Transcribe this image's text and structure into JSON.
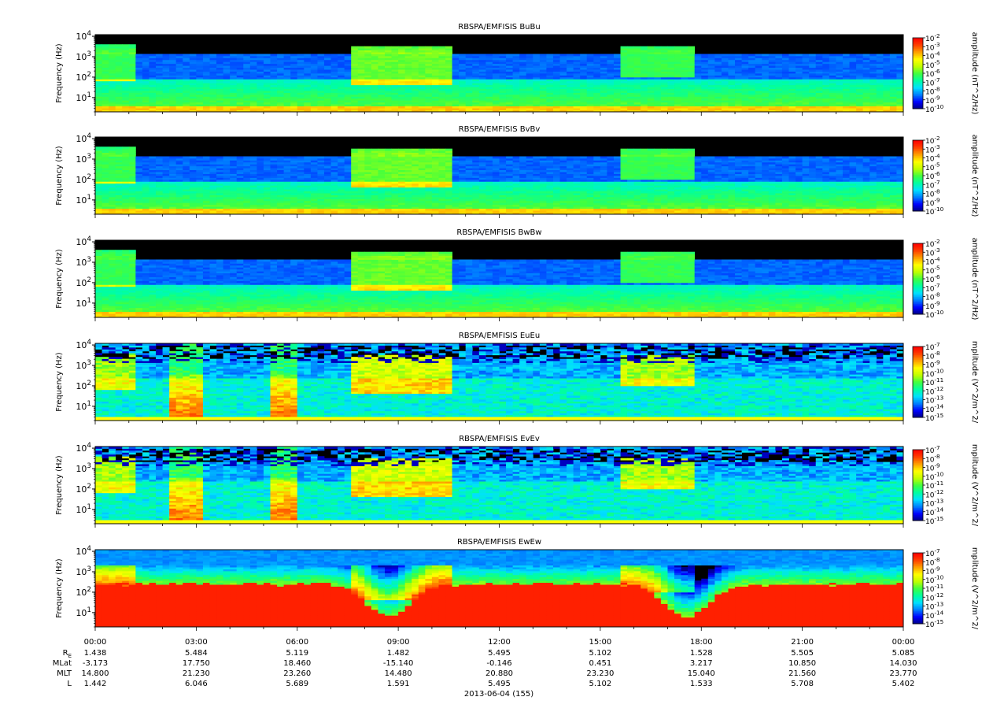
{
  "chart_data": {
    "type": "heatmap",
    "panels": [
      {
        "title": "RBSPA/EMFISIS  BuBu",
        "ylabel": "Frequency (Hz)",
        "yscale": "log",
        "ylim": [
          2,
          12000
        ],
        "yticks": [
          "10^1",
          "10^2",
          "10^3",
          "10^4"
        ],
        "colorbar": {
          "label": "amplitude (nT^2/Hz)",
          "scale": "log",
          "range_exp": [
            -10,
            -2
          ],
          "tick_exponents": [
            -10,
            -9,
            -8,
            -7,
            -6,
            -5,
            -4,
            -3,
            -2
          ]
        }
      },
      {
        "title": "RBSPA/EMFISIS  BvBv",
        "ylabel": "Frequency (Hz)",
        "yscale": "log",
        "ylim": [
          2,
          12000
        ],
        "yticks": [
          "10^1",
          "10^2",
          "10^3",
          "10^4"
        ],
        "colorbar": {
          "label": "amplitude (nT^2/Hz)",
          "scale": "log",
          "range_exp": [
            -10,
            -2
          ],
          "tick_exponents": [
            -10,
            -9,
            -8,
            -7,
            -6,
            -5,
            -4,
            -3,
            -2
          ]
        }
      },
      {
        "title": "RBSPA/EMFISIS  BwBw",
        "ylabel": "Frequency (Hz)",
        "yscale": "log",
        "ylim": [
          2,
          12000
        ],
        "yticks": [
          "10^1",
          "10^2",
          "10^3",
          "10^4"
        ],
        "colorbar": {
          "label": "amplitude (nT^2/Hz)",
          "scale": "log",
          "range_exp": [
            -10,
            -2
          ],
          "tick_exponents": [
            -10,
            -9,
            -8,
            -7,
            -6,
            -5,
            -4,
            -3,
            -2
          ]
        }
      },
      {
        "title": "RBSPA/EMFISIS  EuEu",
        "ylabel": "Frequency (Hz)",
        "yscale": "log",
        "ylim": [
          2,
          12000
        ],
        "yticks": [
          "10^1",
          "10^2",
          "10^3",
          "10^4"
        ],
        "colorbar": {
          "label": "mplitude (V^2/m^2/",
          "scale": "log",
          "range_exp": [
            -15,
            -7
          ],
          "tick_exponents": [
            -15,
            -14,
            -13,
            -12,
            -11,
            -10,
            -9,
            -8,
            -7
          ]
        }
      },
      {
        "title": "RBSPA/EMFISIS  EvEv",
        "ylabel": "Frequency (Hz)",
        "yscale": "log",
        "ylim": [
          2,
          12000
        ],
        "yticks": [
          "10^1",
          "10^2",
          "10^3",
          "10^4"
        ],
        "colorbar": {
          "label": "mplitude (V^2/m^2/",
          "scale": "log",
          "range_exp": [
            -15,
            -7
          ],
          "tick_exponents": [
            -15,
            -14,
            -13,
            -12,
            -11,
            -10,
            -9,
            -8,
            -7
          ]
        }
      },
      {
        "title": "RBSPA/EMFISIS  EwEw",
        "ylabel": "Frequency (Hz)",
        "yscale": "log",
        "ylim": [
          2,
          12000
        ],
        "yticks": [
          "10^1",
          "10^2",
          "10^3",
          "10^4"
        ],
        "colorbar": {
          "label": "mplitude (V^2/m^2/",
          "scale": "log",
          "range_exp": [
            -15,
            -7
          ],
          "tick_exponents": [
            -15,
            -14,
            -13,
            -12,
            -11,
            -10,
            -9,
            -8,
            -7
          ]
        }
      }
    ],
    "x_ticks": [
      "00:00",
      "03:00",
      "06:00",
      "09:00",
      "12:00",
      "15:00",
      "18:00",
      "21:00",
      "00:00"
    ],
    "ephemeris": [
      {
        "label": "R",
        "subscript": "E",
        "values": [
          "1.438",
          "5.484",
          "5.119",
          "1.482",
          "5.495",
          "5.102",
          "1.528",
          "5.505",
          "5.085"
        ]
      },
      {
        "label": "MLat",
        "values": [
          "-3.173",
          "17.750",
          "18.460",
          "-15.140",
          "-0.146",
          "0.451",
          "3.217",
          "10.850",
          "14.030"
        ]
      },
      {
        "label": "MLT",
        "values": [
          "14.800",
          "21.230",
          "23.260",
          "14.480",
          "20.880",
          "23.230",
          "15.040",
          "21.560",
          "23.770"
        ]
      },
      {
        "label": "L",
        "values": [
          "1.442",
          "6.046",
          "5.689",
          "1.591",
          "5.495",
          "5.102",
          "1.533",
          "5.708",
          "5.402"
        ]
      }
    ],
    "xlabel": "2013-06-04 (155)",
    "colormap": [
      "#00007f",
      "#0000ff",
      "#007fff",
      "#00e0ff",
      "#00ffa0",
      "#40ff40",
      "#c0ff00",
      "#ffff00",
      "#ffa000",
      "#ff4000",
      "#ff0000"
    ]
  }
}
